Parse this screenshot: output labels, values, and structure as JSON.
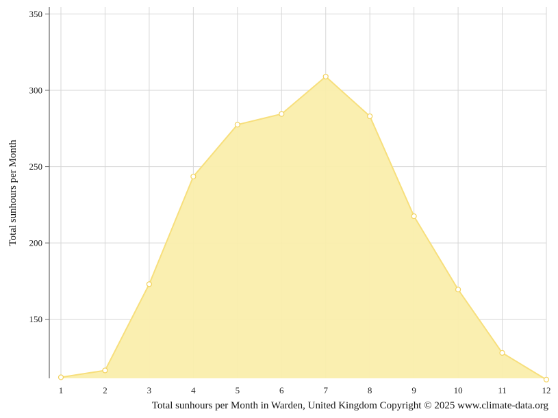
{
  "caption": "Total sunhours per Month in Warden, United Kingdom Copyright © 2025 www.climate-data.org",
  "chart_data": {
    "type": "area",
    "title": "",
    "xlabel": "",
    "ylabel": "Total sunhours per Month",
    "x": [
      1,
      2,
      3,
      4,
      5,
      6,
      7,
      8,
      9,
      10,
      11,
      12
    ],
    "x_tick_labels": [
      "1",
      "2",
      "3",
      "4",
      "5",
      "6",
      "7",
      "8",
      "9",
      "10",
      "11",
      "12"
    ],
    "series": [
      {
        "values": [
          112,
          116.5,
          173,
          243.5,
          277.5,
          284.5,
          309,
          283,
          217.5,
          169.5,
          128,
          110.5
        ],
        "color": "#f7df7c"
      }
    ],
    "ylim": [
      110,
      355
    ],
    "y_ticks": [
      150,
      200,
      250,
      300,
      350
    ],
    "y_tick_labels": [
      "150",
      "200",
      "250",
      "300",
      "350"
    ],
    "grid": true,
    "colors": {
      "fill": "#faeeac",
      "line": "#f7df7c",
      "marker_fill": "#ffffff",
      "marker_stroke": "#f2d25e",
      "grid": "#d6d6d6",
      "axis": "#666666"
    }
  }
}
